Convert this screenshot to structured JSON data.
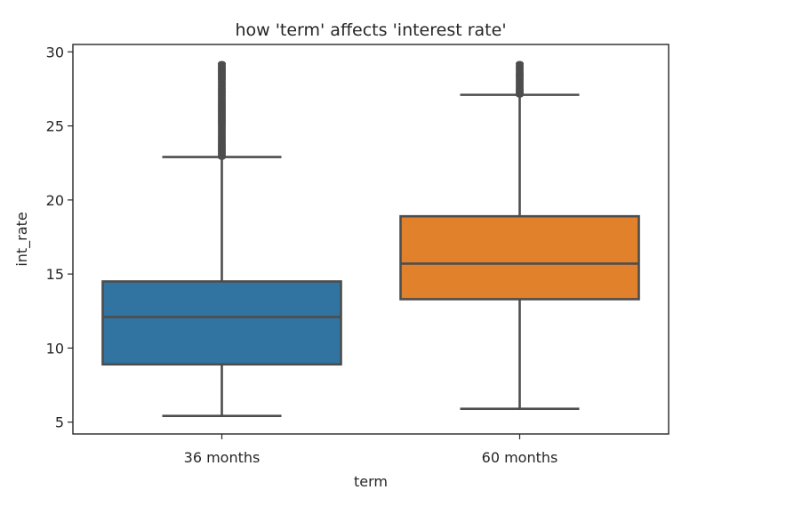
{
  "chart_data": {
    "type": "box",
    "title": "how 'term' affects 'interest rate'",
    "xlabel": "term",
    "ylabel": "int_rate",
    "ylim": [
      4.2,
      30.5
    ],
    "yticks": [
      5,
      10,
      15,
      20,
      25,
      30
    ],
    "grid": false,
    "legend": "none",
    "categories": [
      "36 months",
      "60 months"
    ],
    "boxes": [
      {
        "category": "36 months",
        "whisker_low": 5.42,
        "q1": 8.9,
        "median": 12.1,
        "q3": 14.5,
        "whisker_high": 22.9,
        "outlier_range": [
          22.9,
          29.2
        ],
        "color": "#3274a1"
      },
      {
        "category": "60 months",
        "whisker_low": 5.9,
        "q1": 13.3,
        "median": 15.7,
        "q3": 18.9,
        "whisker_high": 27.1,
        "outlier_range": [
          27.1,
          29.2
        ],
        "color": "#e1812c"
      }
    ]
  }
}
